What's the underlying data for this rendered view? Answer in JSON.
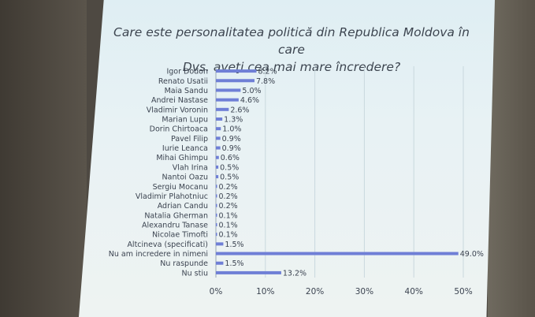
{
  "title_line1": "Care este personalitatea politică din Republica Moldova în care",
  "title_line2": "Dvs. aveţi cea mai mare încredere?",
  "chart_data": {
    "type": "bar",
    "orientation": "horizontal",
    "title": "Care este personalitatea politică din Republica Moldova în care Dvs. aveţi cea mai mare încredere?",
    "categories": [
      "Igor Dodon",
      "Renato Usatii",
      "Maia Sandu",
      "Andrei Nastase",
      "Vladimir Voronin",
      "Marian Lupu",
      "Dorin Chirtoaca",
      "Pavel Filip",
      "Iurie Leanca",
      "Mihai Ghimpu",
      "Vlah Irina",
      "Nantoi Oazu",
      "Sergiu Mocanu",
      "Vladimir Plahotniuc",
      "Adrian Candu",
      "Natalia Gherman",
      "Alexandru Tanase",
      "Nicolae Timofti",
      "Altcineva (specificati)",
      "Nu am incredere in nimeni",
      "Nu raspunde",
      "Nu stiu"
    ],
    "values": [
      8.2,
      7.8,
      5.0,
      4.6,
      2.6,
      1.3,
      1.0,
      0.9,
      0.9,
      0.6,
      0.5,
      0.5,
      0.2,
      0.2,
      0.2,
      0.1,
      0.1,
      0.1,
      1.5,
      49.0,
      1.5,
      13.2
    ],
    "value_labels": [
      "8.2%",
      "7.8%",
      "5.0%",
      "4.6%",
      "2.6%",
      "1.3%",
      "1.0%",
      "0.9%",
      "0.9%",
      "0.6%",
      "0.5%",
      "0.5%",
      "0.2%",
      "0.2%",
      "0.2%",
      "0.1%",
      "0.1%",
      "0.1%",
      "1.5%",
      "49.0%",
      "1.5%",
      "13.2%"
    ],
    "x_ticks": [
      "0%",
      "10%",
      "20%",
      "30%",
      "40%",
      "50%"
    ],
    "xlim": [
      0,
      50
    ],
    "grid": true,
    "bar_color": "#6f7fd6"
  }
}
